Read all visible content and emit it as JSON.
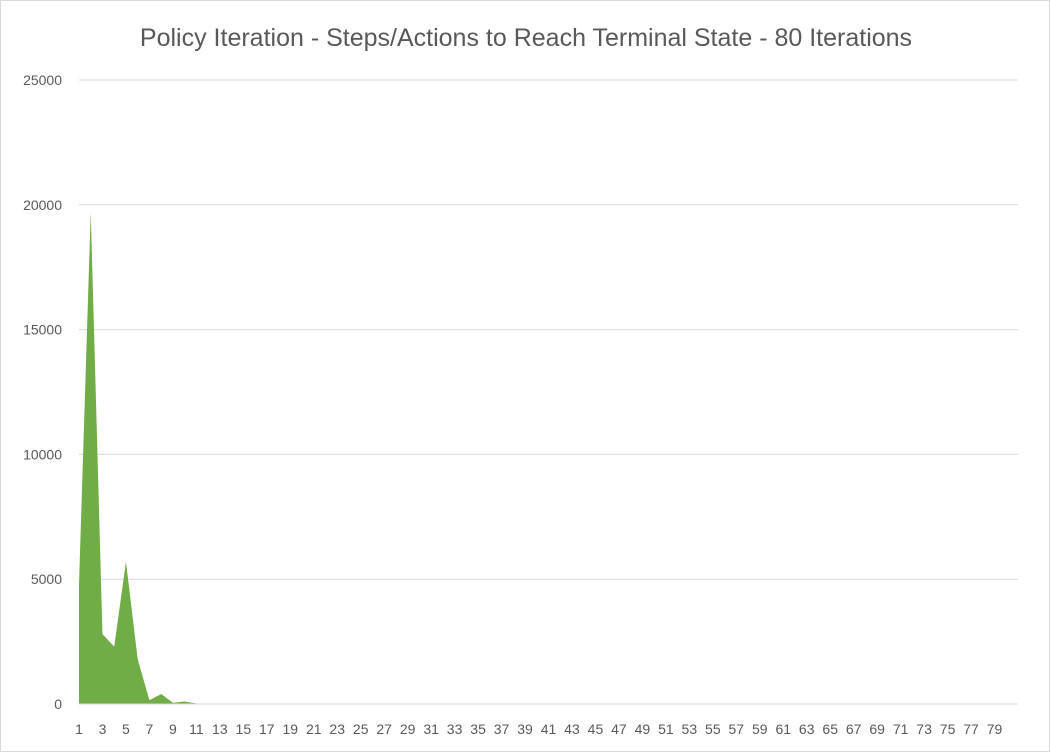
{
  "chart_data": {
    "type": "area",
    "title": "Policy Iteration - Steps/Actions to Reach Terminal State - 80 Iterations",
    "xlabel": "",
    "ylabel": "",
    "ylim": [
      0,
      25000
    ],
    "y_ticks": [
      0,
      5000,
      10000,
      15000,
      20000,
      25000
    ],
    "x_tick_labels": [
      1,
      3,
      5,
      7,
      9,
      11,
      13,
      15,
      17,
      19,
      21,
      23,
      25,
      27,
      29,
      31,
      33,
      35,
      37,
      39,
      41,
      43,
      45,
      47,
      49,
      51,
      53,
      55,
      57,
      59,
      61,
      63,
      65,
      67,
      69,
      71,
      73,
      75,
      77,
      79
    ],
    "grid": "horizontal",
    "legend": "none",
    "color": "#70ad47",
    "x": [
      1,
      2,
      3,
      4,
      5,
      6,
      7,
      8,
      9,
      10,
      11,
      12,
      13,
      14,
      15,
      16,
      17,
      18,
      19,
      20,
      21,
      22,
      23,
      24,
      25,
      26,
      27,
      28,
      29,
      30,
      31,
      32,
      33,
      34,
      35,
      36,
      37,
      38,
      39,
      40,
      41,
      42,
      43,
      44,
      45,
      46,
      47,
      48,
      49,
      50,
      51,
      52,
      53,
      54,
      55,
      56,
      57,
      58,
      59,
      60,
      61,
      62,
      63,
      64,
      65,
      66,
      67,
      68,
      69,
      70,
      71,
      72,
      73,
      74,
      75,
      76,
      77,
      78,
      79,
      80
    ],
    "values": [
      4800,
      19700,
      2800,
      2300,
      5700,
      1800,
      150,
      400,
      50,
      100,
      20,
      10,
      10,
      10,
      10,
      10,
      10,
      10,
      10,
      10,
      10,
      10,
      10,
      10,
      10,
      10,
      10,
      10,
      10,
      10,
      10,
      10,
      10,
      10,
      10,
      10,
      10,
      10,
      10,
      10,
      10,
      10,
      10,
      10,
      10,
      10,
      10,
      10,
      10,
      10,
      10,
      10,
      10,
      10,
      10,
      10,
      10,
      10,
      10,
      10,
      10,
      10,
      10,
      10,
      10,
      10,
      10,
      10,
      10,
      10,
      10,
      10,
      10,
      10,
      10,
      10,
      10,
      10,
      10,
      10
    ]
  }
}
